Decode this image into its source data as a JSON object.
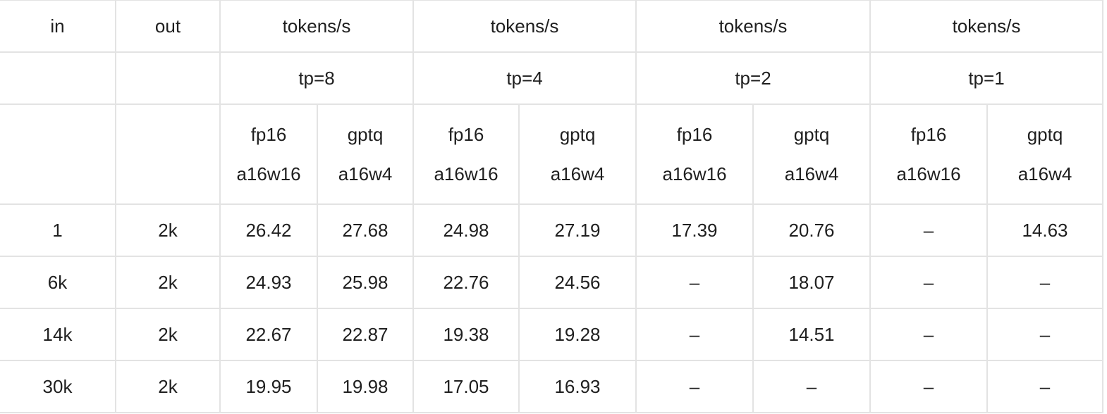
{
  "header": {
    "in_label": "in",
    "out_label": "out",
    "metric_labels": [
      "tokens/s",
      "tokens/s",
      "tokens/s",
      "tokens/s"
    ],
    "tp_labels": [
      "tp=8",
      "tp=4",
      "tp=2",
      "tp=1"
    ],
    "precision_labels": [
      {
        "name": "fp16",
        "bits": "a16w16"
      },
      {
        "name": "gptq",
        "bits": "a16w4"
      },
      {
        "name": "fp16",
        "bits": "a16w16"
      },
      {
        "name": "gptq",
        "bits": "a16w4"
      },
      {
        "name": "fp16",
        "bits": "a16w16"
      },
      {
        "name": "gptq",
        "bits": "a16w4"
      },
      {
        "name": "fp16",
        "bits": "a16w16"
      },
      {
        "name": "gptq",
        "bits": "a16w4"
      }
    ]
  },
  "rows": [
    {
      "in": "1",
      "out": "2k",
      "values": [
        "26.42",
        "27.68",
        "24.98",
        "27.19",
        "17.39",
        "20.76",
        "–",
        "14.63"
      ]
    },
    {
      "in": "6k",
      "out": "2k",
      "values": [
        "24.93",
        "25.98",
        "22.76",
        "24.56",
        "–",
        "18.07",
        "–",
        "–"
      ]
    },
    {
      "in": "14k",
      "out": "2k",
      "values": [
        "22.67",
        "22.87",
        "19.38",
        "19.28",
        "–",
        "14.51",
        "–",
        "–"
      ]
    },
    {
      "in": "30k",
      "out": "2k",
      "values": [
        "19.95",
        "19.98",
        "17.05",
        "16.93",
        "–",
        "–",
        "–",
        "–"
      ]
    }
  ],
  "colors": {
    "border": "#e3e3e3",
    "text": "#1f1f1f",
    "background": "#ffffff"
  }
}
